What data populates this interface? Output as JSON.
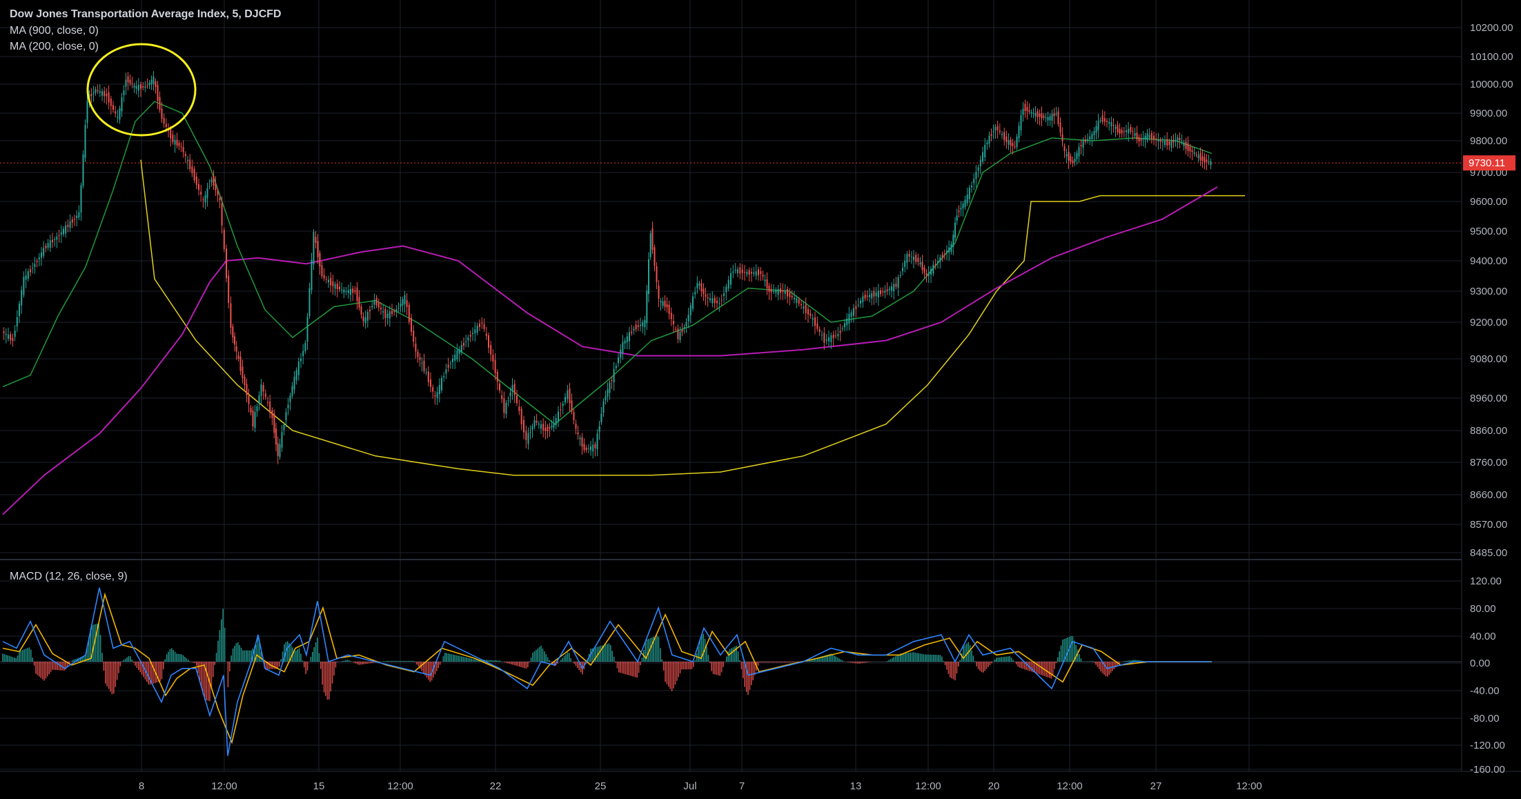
{
  "chart_data": {
    "type": "line",
    "title": "Dow Jones Transportation Average Index, 5, DJCFD",
    "indicators": [
      "MA (900, close, 0)",
      "MA (200, close, 0)"
    ],
    "macd_label": "MACD (12, 26, close, 9)",
    "last_price": "9730.11",
    "x_ticks": [
      "8",
      "12:00",
      "15",
      "12:00",
      "22",
      "25",
      "Jul",
      "7",
      "13",
      "12:00",
      "20",
      "12:00",
      "27",
      "12:00"
    ],
    "price_ticks": [
      "10200.00",
      "10100.00",
      "10000.00",
      "9900.00",
      "9800.00",
      "9700.00",
      "9600.00",
      "9500.00",
      "9400.00",
      "9300.00",
      "9200.00",
      "9080.00",
      "8960.00",
      "8860.00",
      "8760.00",
      "8660.00",
      "8570.00",
      "8485.00"
    ],
    "macd_ticks": [
      "120.00",
      "80.00",
      "40.00",
      "0.00",
      "-40.00",
      "-80.00",
      "-120.00",
      "-160.00"
    ],
    "ylim": [
      8485,
      10200
    ],
    "macd_ylim": [
      -160,
      120
    ],
    "price": [
      [
        0,
        9170
      ],
      [
        8,
        9140
      ],
      [
        16,
        9340
      ],
      [
        24,
        9390
      ],
      [
        32,
        9450
      ],
      [
        40,
        9480
      ],
      [
        48,
        9520
      ],
      [
        56,
        9560
      ],
      [
        62,
        9950
      ],
      [
        68,
        9980
      ],
      [
        76,
        9960
      ],
      [
        84,
        9880
      ],
      [
        90,
        10020
      ],
      [
        96,
        9990
      ],
      [
        104,
        9990
      ],
      [
        110,
        10020
      ],
      [
        116,
        9880
      ],
      [
        124,
        9800
      ],
      [
        130,
        9780
      ],
      [
        138,
        9700
      ],
      [
        146,
        9600
      ],
      [
        152,
        9680
      ],
      [
        158,
        9600
      ],
      [
        166,
        9180
      ],
      [
        170,
        9100
      ],
      [
        176,
        9000
      ],
      [
        182,
        8880
      ],
      [
        188,
        9000
      ],
      [
        196,
        8900
      ],
      [
        200,
        8780
      ],
      [
        206,
        8920
      ],
      [
        212,
        9020
      ],
      [
        220,
        9130
      ],
      [
        226,
        9490
      ],
      [
        232,
        9350
      ],
      [
        240,
        9320
      ],
      [
        248,
        9300
      ],
      [
        256,
        9300
      ],
      [
        262,
        9200
      ],
      [
        270,
        9270
      ],
      [
        278,
        9220
      ],
      [
        286,
        9240
      ],
      [
        292,
        9280
      ],
      [
        300,
        9100
      ],
      [
        306,
        9050
      ],
      [
        314,
        8960
      ],
      [
        322,
        9050
      ],
      [
        330,
        9100
      ],
      [
        338,
        9150
      ],
      [
        348,
        9200
      ],
      [
        356,
        9070
      ],
      [
        364,
        8920
      ],
      [
        370,
        9000
      ],
      [
        380,
        8830
      ],
      [
        386,
        8890
      ],
      [
        394,
        8860
      ],
      [
        400,
        8880
      ],
      [
        410,
        8980
      ],
      [
        416,
        8860
      ],
      [
        422,
        8800
      ],
      [
        430,
        8810
      ],
      [
        436,
        8950
      ],
      [
        442,
        9020
      ],
      [
        450,
        9130
      ],
      [
        458,
        9180
      ],
      [
        466,
        9200
      ],
      [
        470,
        9500
      ],
      [
        476,
        9270
      ],
      [
        482,
        9250
      ],
      [
        490,
        9150
      ],
      [
        496,
        9200
      ],
      [
        504,
        9330
      ],
      [
        510,
        9280
      ],
      [
        520,
        9260
      ],
      [
        530,
        9370
      ],
      [
        540,
        9360
      ],
      [
        550,
        9360
      ],
      [
        556,
        9300
      ],
      [
        566,
        9300
      ],
      [
        576,
        9270
      ],
      [
        586,
        9220
      ],
      [
        596,
        9140
      ],
      [
        606,
        9160
      ],
      [
        614,
        9220
      ],
      [
        624,
        9280
      ],
      [
        632,
        9290
      ],
      [
        640,
        9300
      ],
      [
        648,
        9320
      ],
      [
        656,
        9420
      ],
      [
        664,
        9400
      ],
      [
        670,
        9350
      ],
      [
        680,
        9410
      ],
      [
        688,
        9450
      ],
      [
        692,
        9560
      ],
      [
        698,
        9600
      ],
      [
        706,
        9700
      ],
      [
        714,
        9800
      ],
      [
        720,
        9850
      ],
      [
        728,
        9800
      ],
      [
        734,
        9780
      ],
      [
        740,
        9920
      ],
      [
        746,
        9900
      ],
      [
        752,
        9890
      ],
      [
        758,
        9880
      ],
      [
        764,
        9900
      ],
      [
        770,
        9760
      ],
      [
        776,
        9730
      ],
      [
        782,
        9790
      ],
      [
        790,
        9820
      ],
      [
        796,
        9880
      ],
      [
        804,
        9860
      ],
      [
        810,
        9830
      ],
      [
        818,
        9840
      ],
      [
        824,
        9800
      ],
      [
        830,
        9820
      ],
      [
        838,
        9800
      ],
      [
        846,
        9790
      ],
      [
        852,
        9810
      ],
      [
        858,
        9780
      ],
      [
        864,
        9760
      ],
      [
        870,
        9740
      ],
      [
        876,
        9730
      ]
    ],
    "ma_900": [
      [
        0,
        8600
      ],
      [
        30,
        8720
      ],
      [
        70,
        8850
      ],
      [
        100,
        8990
      ],
      [
        130,
        9160
      ],
      [
        150,
        9330
      ],
      [
        162,
        9400
      ],
      [
        185,
        9410
      ],
      [
        220,
        9390
      ],
      [
        260,
        9430
      ],
      [
        290,
        9450
      ],
      [
        330,
        9400
      ],
      [
        380,
        9230
      ],
      [
        420,
        9120
      ],
      [
        460,
        9090
      ],
      [
        520,
        9090
      ],
      [
        580,
        9110
      ],
      [
        640,
        9140
      ],
      [
        680,
        9200
      ],
      [
        720,
        9310
      ],
      [
        760,
        9410
      ],
      [
        800,
        9480
      ],
      [
        840,
        9540
      ],
      [
        880,
        9650
      ]
    ],
    "ma_200": [
      [
        0,
        8995
      ],
      [
        20,
        9030
      ],
      [
        40,
        9220
      ],
      [
        60,
        9380
      ],
      [
        80,
        9640
      ],
      [
        96,
        9870
      ],
      [
        110,
        9940
      ],
      [
        130,
        9900
      ],
      [
        150,
        9720
      ],
      [
        170,
        9450
      ],
      [
        190,
        9240
      ],
      [
        210,
        9150
      ],
      [
        240,
        9250
      ],
      [
        270,
        9270
      ],
      [
        300,
        9200
      ],
      [
        340,
        9080
      ],
      [
        370,
        8980
      ],
      [
        400,
        8880
      ],
      [
        440,
        9020
      ],
      [
        470,
        9140
      ],
      [
        500,
        9190
      ],
      [
        540,
        9310
      ],
      [
        570,
        9300
      ],
      [
        600,
        9200
      ],
      [
        630,
        9220
      ],
      [
        660,
        9300
      ],
      [
        690,
        9460
      ],
      [
        710,
        9700
      ],
      [
        730,
        9760
      ],
      [
        760,
        9810
      ],
      [
        790,
        9800
      ],
      [
        820,
        9810
      ],
      [
        850,
        9800
      ],
      [
        876,
        9760
      ]
    ],
    "curve_annotation": [
      [
        100,
        9740
      ],
      [
        110,
        9340
      ],
      [
        140,
        9140
      ],
      [
        170,
        9000
      ],
      [
        210,
        8860
      ],
      [
        270,
        8780
      ],
      [
        330,
        8740
      ],
      [
        370,
        8720
      ],
      [
        420,
        8720
      ],
      [
        470,
        8720
      ],
      [
        520,
        8730
      ],
      [
        580,
        8780
      ],
      [
        640,
        8880
      ],
      [
        670,
        9000
      ],
      [
        700,
        9160
      ],
      [
        720,
        9300
      ],
      [
        740,
        9400
      ],
      [
        745,
        9600
      ],
      [
        780,
        9600
      ],
      [
        795,
        9620
      ],
      [
        900,
        9620
      ]
    ],
    "macd": [
      [
        0,
        30
      ],
      [
        10,
        20
      ],
      [
        20,
        60
      ],
      [
        30,
        10
      ],
      [
        45,
        -10
      ],
      [
        60,
        10
      ],
      [
        70,
        110
      ],
      [
        80,
        20
      ],
      [
        92,
        30
      ],
      [
        100,
        0
      ],
      [
        115,
        -60
      ],
      [
        122,
        -20
      ],
      [
        130,
        -10
      ],
      [
        140,
        -10
      ],
      [
        150,
        -80
      ],
      [
        160,
        -20
      ],
      [
        163,
        -140
      ],
      [
        170,
        -60
      ],
      [
        180,
        0
      ],
      [
        185,
        40
      ],
      [
        190,
        -10
      ],
      [
        200,
        -20
      ],
      [
        206,
        20
      ],
      [
        215,
        40
      ],
      [
        220,
        10
      ],
      [
        228,
        90
      ],
      [
        236,
        0
      ],
      [
        250,
        10
      ],
      [
        270,
        0
      ],
      [
        290,
        -10
      ],
      [
        310,
        -20
      ],
      [
        320,
        30
      ],
      [
        340,
        10
      ],
      [
        360,
        -10
      ],
      [
        380,
        -40
      ],
      [
        390,
        0
      ],
      [
        400,
        -5
      ],
      [
        410,
        30
      ],
      [
        420,
        -10
      ],
      [
        440,
        60
      ],
      [
        460,
        0
      ],
      [
        475,
        80
      ],
      [
        485,
        10
      ],
      [
        500,
        0
      ],
      [
        508,
        50
      ],
      [
        520,
        10
      ],
      [
        532,
        40
      ],
      [
        540,
        -20
      ],
      [
        560,
        -10
      ],
      [
        580,
        0
      ],
      [
        600,
        20
      ],
      [
        620,
        10
      ],
      [
        640,
        10
      ],
      [
        660,
        30
      ],
      [
        680,
        40
      ],
      [
        690,
        0
      ],
      [
        700,
        40
      ],
      [
        710,
        10
      ],
      [
        730,
        20
      ],
      [
        740,
        0
      ],
      [
        760,
        -40
      ],
      [
        775,
        30
      ],
      [
        790,
        20
      ],
      [
        800,
        -10
      ],
      [
        820,
        0
      ],
      [
        850,
        0
      ],
      [
        876,
        0
      ]
    ],
    "macd_signal": [
      [
        0,
        20
      ],
      [
        12,
        15
      ],
      [
        24,
        55
      ],
      [
        36,
        12
      ],
      [
        50,
        -5
      ],
      [
        64,
        5
      ],
      [
        74,
        100
      ],
      [
        86,
        25
      ],
      [
        96,
        20
      ],
      [
        106,
        5
      ],
      [
        118,
        -50
      ],
      [
        126,
        -25
      ],
      [
        136,
        -10
      ],
      [
        146,
        -5
      ],
      [
        156,
        -70
      ],
      [
        166,
        -120
      ],
      [
        174,
        -50
      ],
      [
        184,
        10
      ],
      [
        194,
        -5
      ],
      [
        204,
        -15
      ],
      [
        212,
        20
      ],
      [
        222,
        30
      ],
      [
        232,
        80
      ],
      [
        242,
        5
      ],
      [
        258,
        10
      ],
      [
        278,
        -5
      ],
      [
        298,
        -15
      ],
      [
        318,
        20
      ],
      [
        342,
        5
      ],
      [
        364,
        -15
      ],
      [
        384,
        -35
      ],
      [
        396,
        -5
      ],
      [
        412,
        20
      ],
      [
        426,
        -5
      ],
      [
        446,
        55
      ],
      [
        466,
        5
      ],
      [
        480,
        70
      ],
      [
        492,
        15
      ],
      [
        506,
        5
      ],
      [
        514,
        45
      ],
      [
        526,
        10
      ],
      [
        538,
        30
      ],
      [
        548,
        -15
      ],
      [
        568,
        -5
      ],
      [
        590,
        5
      ],
      [
        610,
        15
      ],
      [
        630,
        10
      ],
      [
        650,
        10
      ],
      [
        668,
        25
      ],
      [
        686,
        35
      ],
      [
        696,
        5
      ],
      [
        706,
        30
      ],
      [
        720,
        10
      ],
      [
        736,
        15
      ],
      [
        750,
        -5
      ],
      [
        768,
        -30
      ],
      [
        782,
        25
      ],
      [
        796,
        15
      ],
      [
        810,
        -5
      ],
      [
        830,
        0
      ],
      [
        860,
        0
      ],
      [
        876,
        0
      ]
    ],
    "colors": {
      "background": "#000000",
      "grid": "#1e222d",
      "up": "#26a69a",
      "down": "#ef5350",
      "ma_900": "#b71cb4",
      "ma_200": "#1f9a3c",
      "curve_annotation": "#e4d21b",
      "ellipse": "#f7f01e",
      "macd": "#2e86ff",
      "macd_signal": "#f5b700",
      "last_price_badge": "#e53935"
    }
  }
}
